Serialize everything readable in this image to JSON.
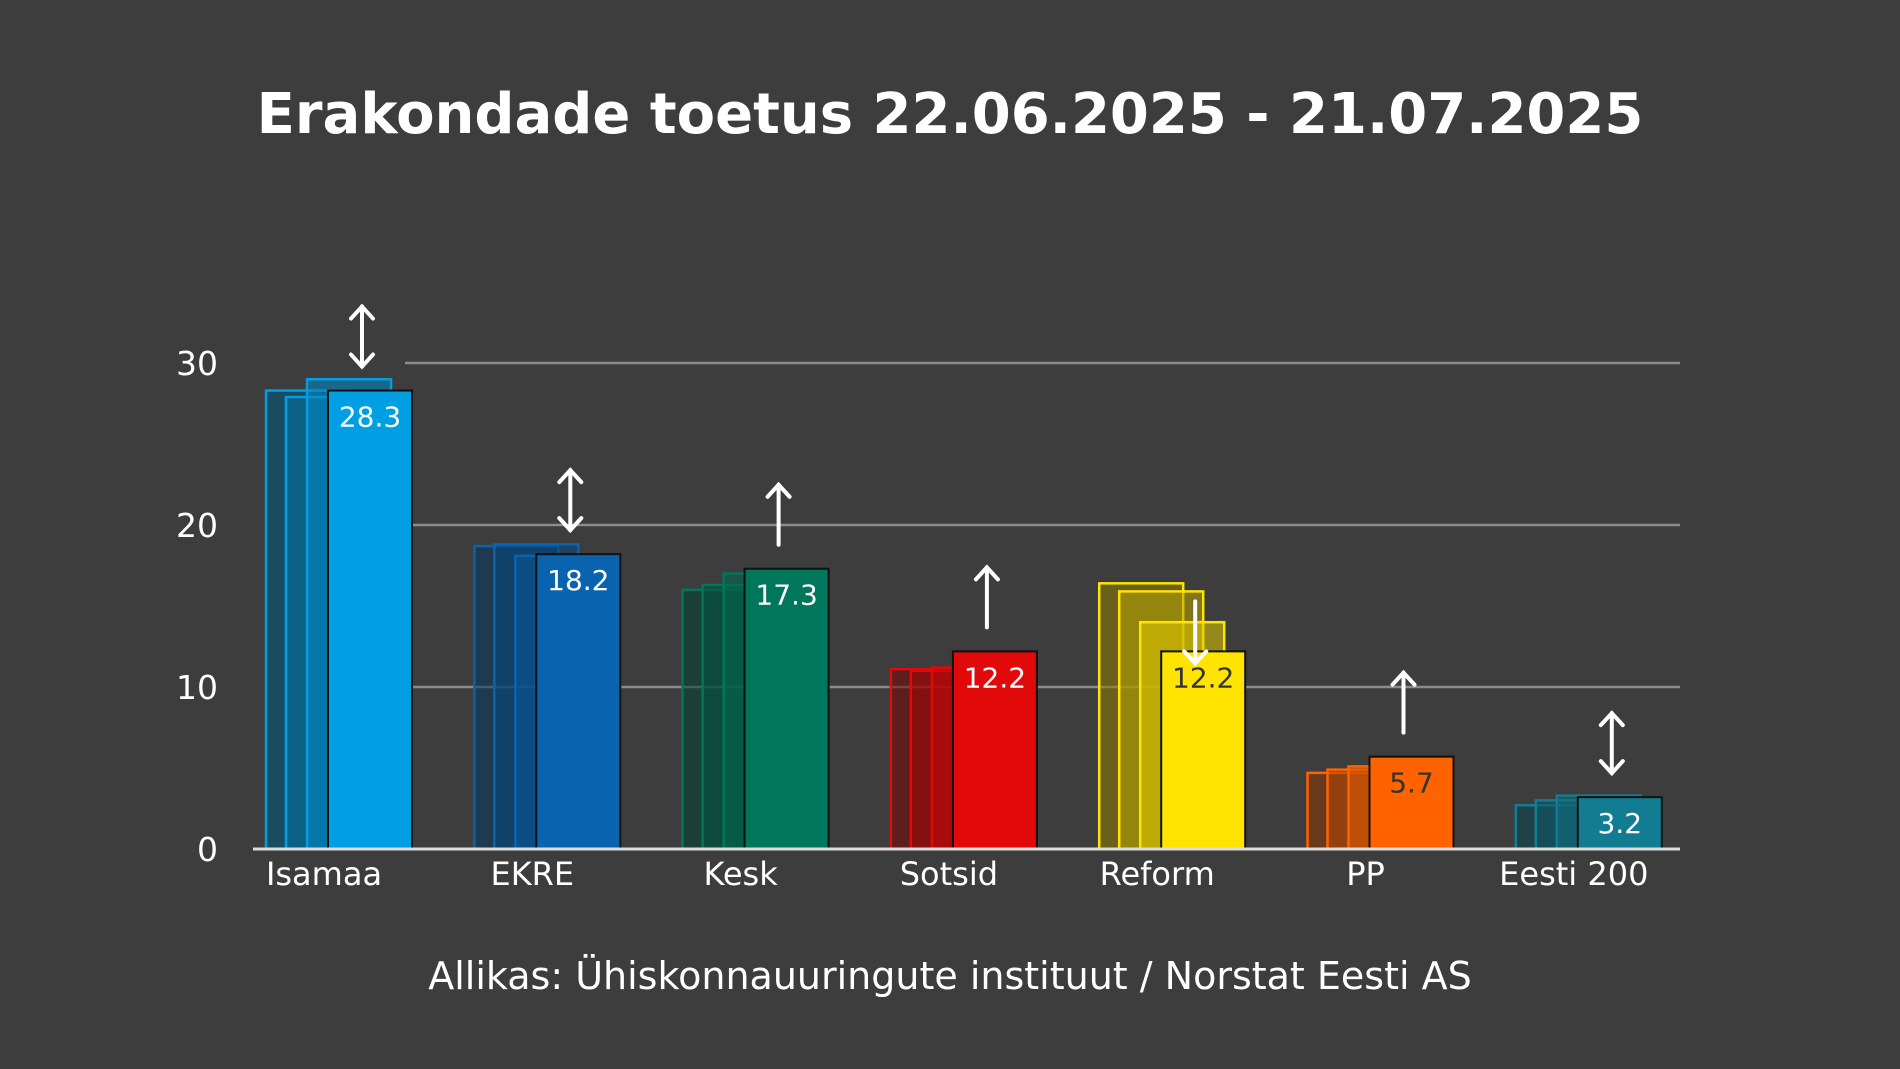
{
  "chart_data": {
    "type": "bar",
    "title": "Erakondade toetus 22.06.2025 - 21.07.2025",
    "source": "Allikas: Ühiskonnauuringute instituut / Norstat Eesti AS",
    "ylim": [
      0,
      30
    ],
    "yticks": [
      "0",
      "10",
      "20",
      "30"
    ],
    "grid": true,
    "categories": [
      "Isamaa",
      "EKRE",
      "Kesk",
      "Sotsid",
      "Reform",
      "PP",
      "Eesti 200"
    ],
    "values": [
      28.3,
      18.2,
      17.3,
      12.2,
      12.2,
      5.7,
      3.2
    ],
    "value_labels": [
      "28.3",
      "18.2",
      "17.3",
      "12.2",
      "12.2",
      "5.7",
      "3.2"
    ],
    "previous_values": [
      [
        28.3,
        27.9,
        29.0
      ],
      [
        18.7,
        18.8,
        18.1
      ],
      [
        16.0,
        16.3,
        17.0
      ],
      [
        11.1,
        11.0,
        11.2
      ],
      [
        16.4,
        15.9,
        14.0
      ],
      [
        4.7,
        4.9,
        5.1
      ],
      [
        2.7,
        3.0,
        3.3
      ]
    ],
    "trend": [
      "both",
      "both",
      "up",
      "up",
      "down",
      "up",
      "both"
    ],
    "colors": [
      "#009ee3",
      "#0a63ae",
      "#00775a",
      "#e10909",
      "#ffe400",
      "#ff6300",
      "#127d92"
    ],
    "label_colors": [
      "#ffffff",
      "#ffffff",
      "#ffffff",
      "#ffffff",
      "#333333",
      "#333333",
      "#ffffff"
    ]
  }
}
